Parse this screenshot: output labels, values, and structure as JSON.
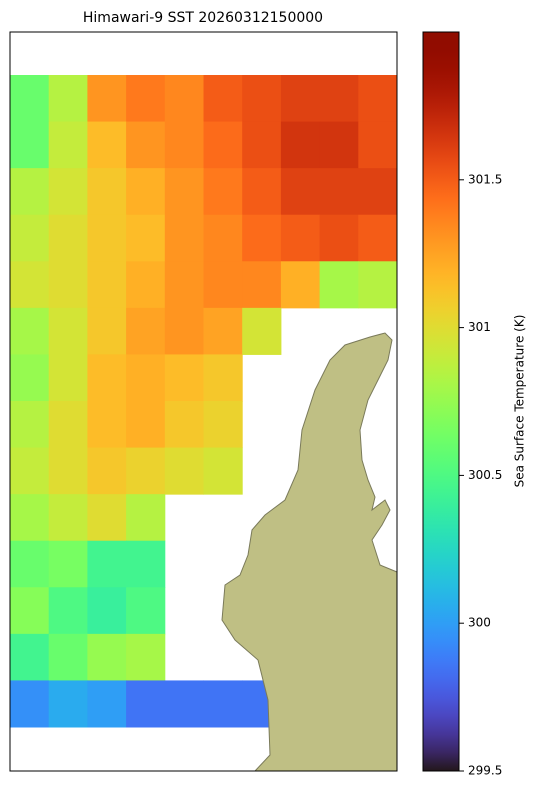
{
  "chart_data": {
    "type": "heatmap",
    "title": "Himawari-9 SST 20260312150000",
    "colorbar_label": "Sea Surface Temperature (K)",
    "clim": [
      299.5,
      302.0
    ],
    "cticks": [
      299.5,
      300.0,
      300.5,
      301.0,
      301.5
    ],
    "values": [
      [
        300.6,
        300.85,
        301.3,
        301.4,
        301.35,
        301.5,
        301.55,
        301.6,
        301.6,
        301.55
      ],
      [
        300.6,
        300.9,
        301.15,
        301.3,
        301.35,
        301.45,
        301.55,
        301.65,
        301.65,
        301.55
      ],
      [
        300.85,
        300.95,
        301.1,
        301.2,
        301.3,
        301.4,
        301.5,
        301.6,
        301.6,
        301.6
      ],
      [
        300.9,
        301.0,
        301.1,
        301.15,
        301.3,
        301.35,
        301.45,
        301.5,
        301.55,
        301.5
      ],
      [
        300.95,
        301.0,
        301.1,
        301.2,
        301.3,
        301.35,
        301.35,
        301.2,
        300.8,
        300.85
      ],
      [
        300.8,
        300.95,
        301.1,
        301.25,
        301.3,
        301.25,
        300.95,
        null,
        null,
        null
      ],
      [
        300.75,
        300.95,
        301.15,
        301.2,
        301.15,
        301.1,
        null,
        null,
        null,
        null
      ],
      [
        300.85,
        301.0,
        301.15,
        301.2,
        301.1,
        301.05,
        null,
        null,
        null,
        null
      ],
      [
        300.9,
        301.0,
        301.1,
        301.05,
        301.0,
        300.95,
        null,
        null,
        null,
        null
      ],
      [
        300.8,
        300.9,
        301.0,
        300.85,
        null,
        null,
        null,
        null,
        null,
        null
      ],
      [
        300.6,
        300.65,
        300.45,
        300.45,
        null,
        null,
        null,
        null,
        null,
        null
      ],
      [
        300.7,
        300.5,
        300.4,
        300.5,
        null,
        null,
        null,
        null,
        null,
        null
      ],
      [
        300.45,
        300.6,
        300.75,
        300.8,
        null,
        null,
        null,
        null,
        null,
        null
      ],
      [
        299.95,
        300.05,
        300.0,
        299.85,
        299.85,
        299.85,
        299.85,
        null,
        null,
        null
      ]
    ]
  }
}
